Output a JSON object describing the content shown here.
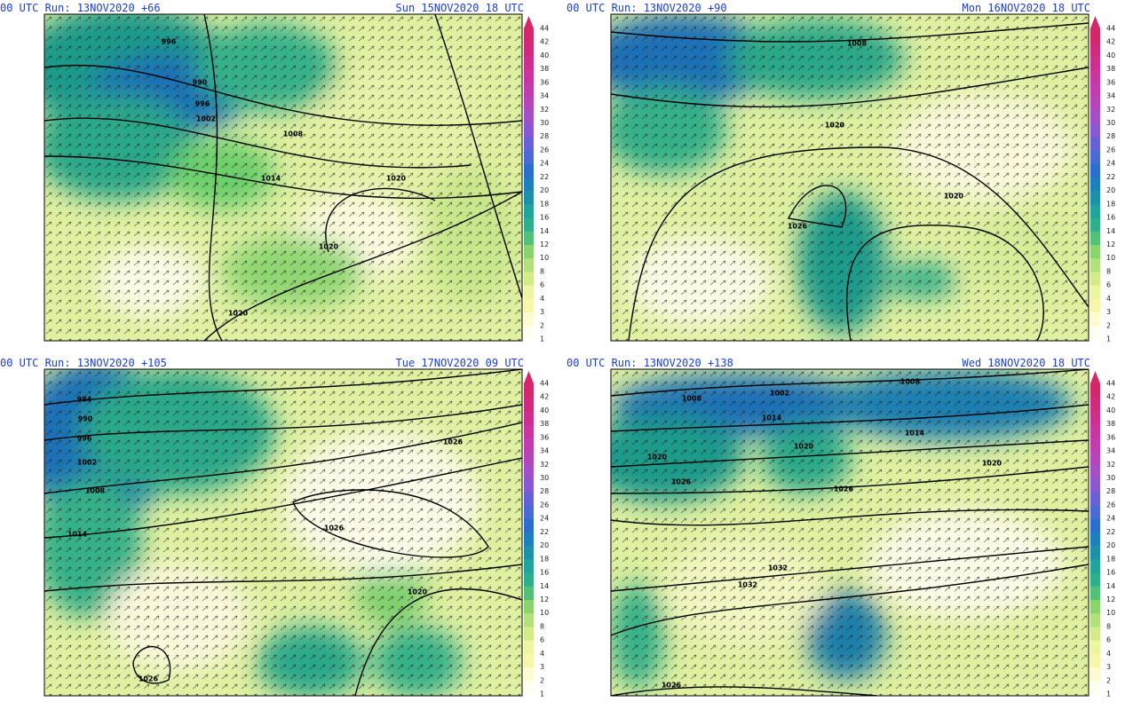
{
  "panels": [
    {
      "run_label": "00 UTC Run: 13NOV2020 +66",
      "valid_label": "Sun 15NOV2020 18 UTC",
      "isobar_labels": [
        "996",
        "990",
        "996",
        "1002",
        "1008",
        "1014",
        "1020",
        "1020",
        "1020"
      ]
    },
    {
      "run_label": "00 UTC Run: 13NOV2020 +90",
      "valid_label": "Mon 16NOV2020 18 UTC",
      "isobar_labels": [
        "1008",
        "1020",
        "1026",
        "1020"
      ]
    },
    {
      "run_label": "00 UTC Run: 13NOV2020 +105",
      "valid_label": "Tue 17NOV2020 09 UTC",
      "isobar_labels": [
        "984",
        "990",
        "996",
        "1002",
        "1008",
        "1014",
        "1026",
        "1026",
        "1020",
        "1026"
      ]
    },
    {
      "run_label": "00 UTC Run: 13NOV2020 +138",
      "valid_label": "Wed 18NOV2020 18 UTC",
      "isobar_labels": [
        "1008",
        "1002",
        "1008",
        "1014",
        "1014",
        "1020",
        "1020",
        "1020",
        "1026",
        "1026",
        "1032",
        "1032",
        "1026"
      ]
    }
  ],
  "colorbar": {
    "ticks": [
      1,
      2,
      3,
      4,
      6,
      8,
      10,
      12,
      14,
      16,
      18,
      20,
      22,
      24,
      26,
      28,
      30,
      32,
      34,
      36,
      38,
      40,
      42,
      44
    ]
  }
}
